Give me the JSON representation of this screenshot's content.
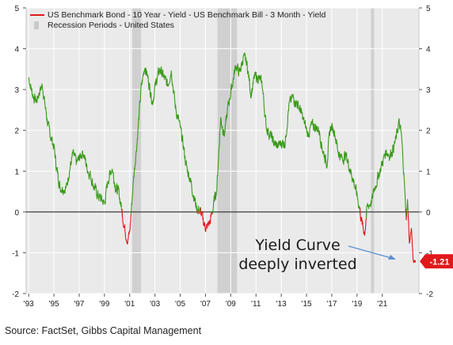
{
  "source_text": "Source: FactSet, Gibbs Capital Management",
  "chart_data": {
    "type": "line",
    "legend": {
      "series_label": "US Benchmark Bond - 10 Year - Yield - US Benchmark Bill - 3 Month - Yield",
      "recession_label": "Recession Periods - United States",
      "placement": "top-left"
    },
    "x_tick_labels": [
      "'93",
      "'95",
      "'97",
      "'99",
      "'01",
      "'03",
      "'05",
      "'07",
      "'09",
      "'11",
      "'13",
      "'15",
      "'17",
      "'19",
      "'21"
    ],
    "x_tick_years": [
      1993,
      1995,
      1997,
      1999,
      2001,
      2003,
      2005,
      2007,
      2009,
      2011,
      2013,
      2015,
      2017,
      2019,
      2021
    ],
    "xlim": [
      1992.8,
      2023.9
    ],
    "y_ticks": [
      -2,
      -1,
      0,
      1,
      2,
      3,
      4,
      5
    ],
    "y_tick_labels": [
      "-2",
      "-1",
      "0",
      "1",
      "2",
      "3",
      "4",
      "5"
    ],
    "ylim": [
      -2,
      5
    ],
    "grid": true,
    "recessions": [
      [
        2001.2,
        2001.9
      ],
      [
        2007.95,
        2009.5
      ],
      [
        2020.1,
        2020.35
      ]
    ],
    "series": [
      {
        "name": "US Benchmark Bond - 10 Year - Yield - US Benchmark Bill - 3 Month - Yield",
        "color_positive": "#3a9a1a",
        "color_negative": "#e0191b",
        "x": [
          1993.0,
          1993.3,
          1993.6,
          1993.9,
          1994.1,
          1994.3,
          1994.6,
          1994.9,
          1995.0,
          1995.2,
          1995.5,
          1995.8,
          1996.0,
          1996.2,
          1996.5,
          1996.8,
          1997.0,
          1997.3,
          1997.6,
          1997.9,
          1998.2,
          1998.5,
          1998.8,
          1999.0,
          1999.3,
          1999.6,
          1999.9,
          2000.1,
          2000.3,
          2000.6,
          2000.85,
          2001.0,
          2001.3,
          2001.6,
          2001.9,
          2002.2,
          2002.5,
          2002.8,
          2003.1,
          2003.4,
          2003.7,
          2004.0,
          2004.3,
          2004.6,
          2004.9,
          2005.2,
          2005.5,
          2005.8,
          2006.0,
          2006.3,
          2006.6,
          2006.9,
          2007.1,
          2007.4,
          2007.6,
          2007.9,
          2008.2,
          2008.5,
          2008.8,
          2009.1,
          2009.4,
          2009.7,
          2010.0,
          2010.3,
          2010.6,
          2010.9,
          2011.2,
          2011.5,
          2011.8,
          2012.1,
          2012.4,
          2012.7,
          2013.0,
          2013.3,
          2013.6,
          2013.9,
          2014.2,
          2014.5,
          2014.8,
          2015.1,
          2015.4,
          2015.7,
          2016.0,
          2016.3,
          2016.6,
          2016.9,
          2017.2,
          2017.5,
          2017.8,
          2018.1,
          2018.4,
          2018.7,
          2019.0,
          2019.2,
          2019.4,
          2019.6,
          2019.8,
          2020.0,
          2020.2,
          2020.4,
          2020.7,
          2021.0,
          2021.3,
          2021.6,
          2021.9,
          2022.1,
          2022.3,
          2022.5,
          2022.7,
          2022.8,
          2022.9,
          2023.0,
          2023.15,
          2023.3,
          2023.45,
          2023.55
        ],
        "y": [
          3.3,
          2.9,
          2.7,
          3.0,
          3.1,
          2.6,
          2.0,
          1.7,
          1.6,
          1.1,
          0.6,
          0.6,
          0.6,
          1.0,
          1.4,
          1.2,
          1.3,
          1.5,
          1.1,
          0.9,
          0.6,
          0.4,
          0.3,
          0.2,
          0.8,
          1.1,
          0.6,
          0.5,
          0.2,
          -0.4,
          -0.7,
          -0.5,
          0.8,
          1.8,
          3.0,
          3.6,
          3.2,
          2.7,
          3.2,
          3.5,
          3.3,
          3.1,
          3.5,
          2.6,
          2.2,
          1.7,
          1.1,
          0.8,
          0.5,
          0.1,
          0.0,
          -0.3,
          -0.4,
          -0.2,
          0.1,
          0.6,
          2.3,
          1.9,
          2.6,
          3.1,
          3.6,
          3.4,
          3.8,
          3.6,
          2.9,
          3.3,
          3.3,
          3.1,
          2.1,
          1.9,
          1.7,
          1.6,
          1.7,
          1.7,
          2.6,
          2.8,
          2.7,
          2.5,
          2.2,
          1.9,
          2.1,
          2.1,
          2.0,
          1.5,
          1.2,
          2.1,
          2.0,
          1.5,
          1.3,
          1.4,
          1.1,
          0.8,
          0.4,
          0.1,
          -0.3,
          -0.5,
          0.1,
          0.2,
          0.3,
          0.6,
          0.9,
          1.2,
          1.5,
          1.4,
          1.6,
          1.8,
          2.2,
          1.9,
          1.0,
          0.4,
          -0.2,
          0.3,
          -0.8,
          -0.4,
          -1.2,
          -1.21
        ]
      }
    ],
    "annotations": {
      "text_line1": "Yield Curve",
      "text_line2": "deeply inverted",
      "last_value_label": "-1.21",
      "last_value": -1.21
    }
  }
}
